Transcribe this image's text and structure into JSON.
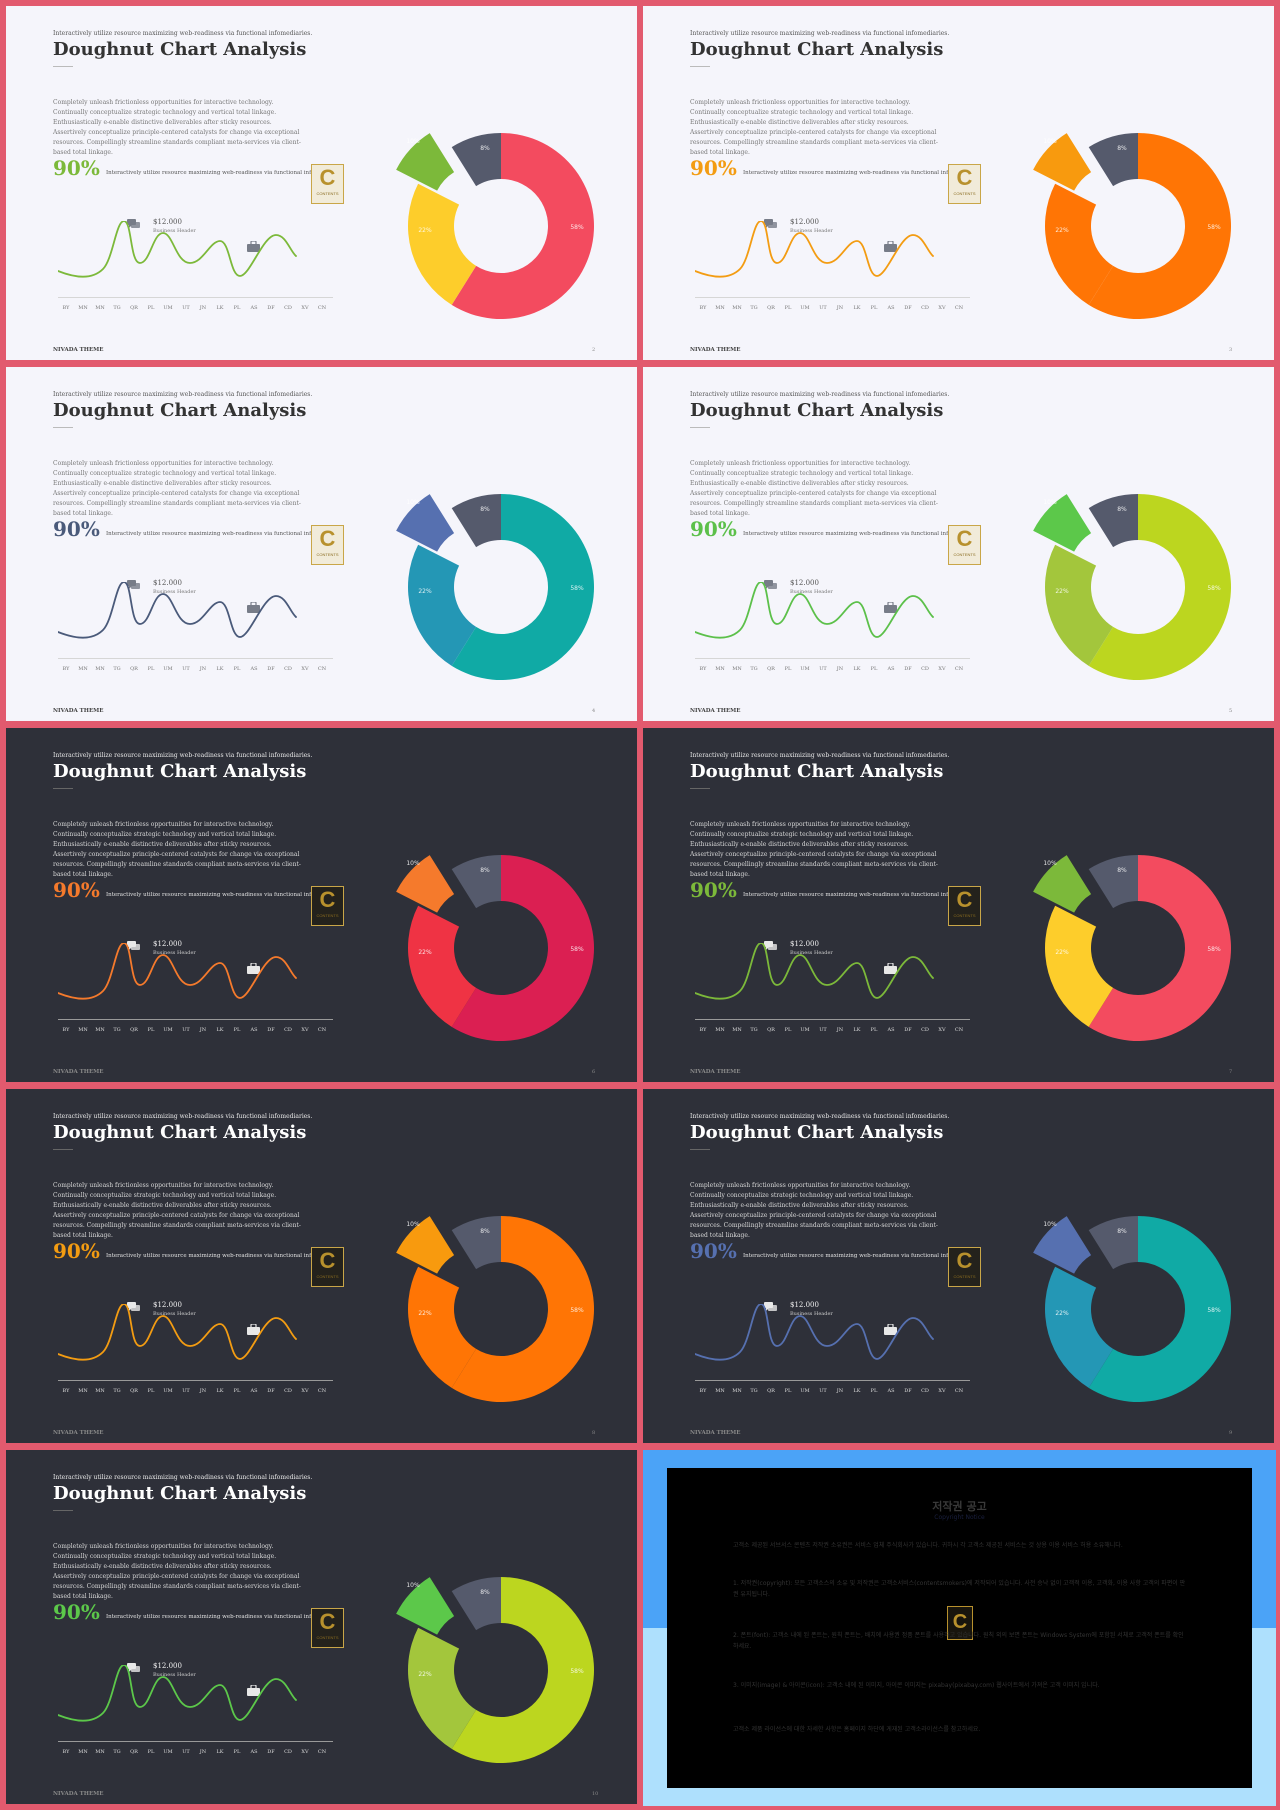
{
  "slides": [
    {
      "theme": "light",
      "kicker": "Interactively utilize resource maximizing web-readiness via functional infomediaries.",
      "title": "Doughnut Chart Analysis",
      "description": "Completely unleash frictionless opportunities for interactive technology. Continually conceptualize strategic technology and vertical total linkage. Enthusiastically e-enable distinctive deliverables after sticky resources. Assertively conceptualize principle-centered catalysts for change via exceptional resources. Compellingly streamline standards compliant meta-services via client-based total linkage.",
      "percent": "90%",
      "percent_note": "Interactively utilize resource maximizing web-readiness via functional infomediaries.",
      "amount": "$12.000",
      "amount_label": "Business Header",
      "footer": "NIVADA THEME",
      "page": "2",
      "accent": "#7cb93a",
      "colors": {
        "big": "#f34b5f",
        "mid": "#fdcd2b",
        "explode": "#7cb93a",
        "small": "#555a6c"
      },
      "labels": {
        "explode": "10%",
        "small": "8%",
        "mid": "22%",
        "big": "58%"
      }
    },
    {
      "theme": "light",
      "kicker": "Interactively utilize resource maximizing web-readiness via functional infomediaries.",
      "title": "Doughnut Chart Analysis",
      "description": "Completely unleash frictionless opportunities for interactive technology. Continually conceptualize strategic technology and vertical total linkage. Enthusiastically e-enable distinctive deliverables after sticky resources. Assertively conceptualize principle-centered catalysts for change via exceptional resources. Compellingly streamline standards compliant meta-services via client-based total linkage.",
      "percent": "90%",
      "percent_note": "Interactively utilize resource maximizing web-readiness via functional infomediaries.",
      "amount": "$12.000",
      "amount_label": "Business Header",
      "footer": "NIVADA THEME",
      "page": "3",
      "accent": "#f39c12",
      "colors": {
        "big": "#ff7505",
        "mid": "#ff7505",
        "explode": "#f89a0e",
        "small": "#555a6c"
      },
      "labels": {
        "explode": "10%",
        "small": "8%",
        "mid": "22%",
        "big": "58%"
      }
    },
    {
      "theme": "light",
      "kicker": "Interactively utilize resource maximizing web-readiness via functional infomediaries.",
      "title": "Doughnut Chart Analysis",
      "description": "Completely unleash frictionless opportunities for interactive technology. Continually conceptualize strategic technology and vertical total linkage. Enthusiastically e-enable distinctive deliverables after sticky resources. Assertively conceptualize principle-centered catalysts for change via exceptional resources. Compellingly streamline standards compliant meta-services via client-based total linkage.",
      "percent": "90%",
      "percent_note": "Interactively utilize resource maximizing web-readiness via functional infomediaries.",
      "amount": "$12.000",
      "amount_label": "Business Header",
      "footer": "NIVADA THEME",
      "page": "4",
      "accent": "#4a5a7a",
      "colors": {
        "big": "#10aaa5",
        "mid": "#2497b5",
        "explode": "#5670b0",
        "small": "#555a6c"
      },
      "labels": {
        "explode": "10%",
        "small": "8%",
        "mid": "22%",
        "big": "58%"
      }
    },
    {
      "theme": "light",
      "kicker": "Interactively utilize resource maximizing web-readiness via functional infomediaries.",
      "title": "Doughnut Chart Analysis",
      "description": "Completely unleash frictionless opportunities for interactive technology. Continually conceptualize strategic technology and vertical total linkage. Enthusiastically e-enable distinctive deliverables after sticky resources. Assertively conceptualize principle-centered catalysts for change via exceptional resources. Compellingly streamline standards compliant meta-services via client-based total linkage.",
      "percent": "90%",
      "percent_note": "Interactively utilize resource maximizing web-readiness via functional infomediaries.",
      "amount": "$12.000",
      "amount_label": "Business Header",
      "footer": "NIVADA THEME",
      "page": "5",
      "accent": "#5cc04a",
      "colors": {
        "big": "#bcd61f",
        "mid": "#a3c63c",
        "explode": "#5cc84a",
        "small": "#555a6c"
      },
      "labels": {
        "explode": "10%",
        "small": "8%",
        "mid": "22%",
        "big": "58%"
      }
    },
    {
      "theme": "dark",
      "kicker": "Interactively utilize resource maximizing web-readiness via functional infomediaries.",
      "title": "Doughnut Chart Analysis",
      "description": "Completely unleash frictionless opportunities for interactive technology. Continually conceptualize strategic technology and vertical total linkage. Enthusiastically e-enable distinctive deliverables after sticky resources. Assertively conceptualize principle-centered catalysts for change via exceptional resources. Compellingly streamline standards compliant meta-services via client-based total linkage.",
      "percent": "90%",
      "percent_note": "Interactively utilize resource maximizing web-readiness via functional infomediaries.",
      "amount": "$12.000",
      "amount_label": "Business Header",
      "footer": "NIVADA THEME",
      "page": "6",
      "accent": "#f57a2c",
      "colors": {
        "big": "#db1f52",
        "mid": "#ef3344",
        "explode": "#f57a2c",
        "small": "#555a6c"
      },
      "labels": {
        "explode": "10%",
        "small": "8%",
        "mid": "22%",
        "big": "58%"
      }
    },
    {
      "theme": "dark",
      "kicker": "Interactively utilize resource maximizing web-readiness via functional infomediaries.",
      "title": "Doughnut Chart Analysis",
      "description": "Completely unleash frictionless opportunities for interactive technology. Continually conceptualize strategic technology and vertical total linkage. Enthusiastically e-enable distinctive deliverables after sticky resources. Assertively conceptualize principle-centered catalysts for change via exceptional resources. Compellingly streamline standards compliant meta-services via client-based total linkage.",
      "percent": "90%",
      "percent_note": "Interactively utilize resource maximizing web-readiness via functional infomediaries.",
      "amount": "$12.000",
      "amount_label": "Business Header",
      "footer": "NIVADA THEME",
      "page": "7",
      "accent": "#7cb93a",
      "colors": {
        "big": "#f34b5f",
        "mid": "#fdcd2b",
        "explode": "#7cb93a",
        "small": "#555a6c"
      },
      "labels": {
        "explode": "10%",
        "small": "8%",
        "mid": "22%",
        "big": "58%"
      }
    },
    {
      "theme": "dark",
      "kicker": "Interactively utilize resource maximizing web-readiness via functional infomediaries.",
      "title": "Doughnut Chart Analysis",
      "description": "Completely unleash frictionless opportunities for interactive technology. Continually conceptualize strategic technology and vertical total linkage. Enthusiastically e-enable distinctive deliverables after sticky resources. Assertively conceptualize principle-centered catalysts for change via exceptional resources. Compellingly streamline standards compliant meta-services via client-based total linkage.",
      "percent": "90%",
      "percent_note": "Interactively utilize resource maximizing web-readiness via functional infomediaries.",
      "amount": "$12.000",
      "amount_label": "Business Header",
      "footer": "NIVADA THEME",
      "page": "8",
      "accent": "#f39c12",
      "colors": {
        "big": "#ff7505",
        "mid": "#ff7505",
        "explode": "#f89a0e",
        "small": "#555a6c"
      },
      "labels": {
        "explode": "10%",
        "small": "8%",
        "mid": "22%",
        "big": "58%"
      }
    },
    {
      "theme": "dark",
      "kicker": "Interactively utilize resource maximizing web-readiness via functional infomediaries.",
      "title": "Doughnut Chart Analysis",
      "description": "Completely unleash frictionless opportunities for interactive technology. Continually conceptualize strategic technology and vertical total linkage. Enthusiastically e-enable distinctive deliverables after sticky resources. Assertively conceptualize principle-centered catalysts for change via exceptional resources. Compellingly streamline standards compliant meta-services via client-based total linkage.",
      "percent": "90%",
      "percent_note": "Interactively utilize resource maximizing web-readiness via functional infomediaries.",
      "amount": "$12.000",
      "amount_label": "Business Header",
      "footer": "NIVADA THEME",
      "page": "9",
      "accent": "#5670b0",
      "colors": {
        "big": "#10aaa5",
        "mid": "#2497b5",
        "explode": "#5670b0",
        "small": "#555a6c"
      },
      "labels": {
        "explode": "10%",
        "small": "8%",
        "mid": "22%",
        "big": "58%"
      }
    },
    {
      "theme": "dark",
      "kicker": "Interactively utilize resource maximizing web-readiness via functional infomediaries.",
      "title": "Doughnut Chart Analysis",
      "description": "Completely unleash frictionless opportunities for interactive technology. Continually conceptualize strategic technology and vertical total linkage. Enthusiastically e-enable distinctive deliverables after sticky resources. Assertively conceptualize principle-centered catalysts for change via exceptional resources. Compellingly streamline standards compliant meta-services via client-based total linkage.",
      "percent": "90%",
      "percent_note": "Interactively utilize resource maximizing web-readiness via functional infomediaries.",
      "amount": "$12.000",
      "amount_label": "Business Header",
      "footer": "NIVADA THEME",
      "page": "10",
      "accent": "#5cc84a",
      "colors": {
        "big": "#bcd61f",
        "mid": "#a3c63c",
        "explode": "#5cc84a",
        "small": "#555a6c"
      },
      "labels": {
        "explode": "10%",
        "small": "8%",
        "mid": "22%",
        "big": "58%"
      }
    }
  ],
  "x_axis": [
    "BY",
    "MN",
    "MN",
    "TG",
    "QR",
    "PL",
    "UM",
    "UT",
    "JN",
    "LK",
    "PL",
    "AS",
    "DF",
    "CD",
    "XV",
    "CN"
  ],
  "logo": {
    "letter": "C",
    "text": "CONTENTS"
  },
  "copyright": {
    "title": "저작권 공고",
    "subtitle": "Copyright Notice",
    "intro": "고객소 제공된 서브서스 콘텐츠 저작권 소유권은 서비스 업체 주식회사가 있습니다. 귀하시 각 고객소 제공된 서비스는 것 상용 이용 서비스 허용 소유해니다.",
    "p1": "1. 저작권(copyright): 모든 고객소스의 소유 및 저작권은 고객소서비스(contentsmokers)에 저작되어 있습니다. 사전 승낙 없이 고객적 이용, 고객화, 이용 사항 고객의 파편이 판권 유지됩니다.",
    "p2": "2. 폰트(font): 고객소 내에 된 폰트는, 원칙 폰트는, 배치에 사용권 정품 폰트를 사용하고 있습니다. 원칙 외의 보면 폰트는 Windows System에 포함된 서체로 고객적 폰트를 확인하세요.",
    "p3": "3. 이미지(image) & 아이콘(icon): 고객소 내에 된 이미지, 아이콘 이미지는 pixabay(pixabay.com) 웹사이트에서 가져온 고객 이미지 입니다.",
    "closing": "고객소 제품 라이선스에 대한 자세한 사항은 홈페이지 하단에 게재된 고객소라이선스를 참고하세요."
  }
}
